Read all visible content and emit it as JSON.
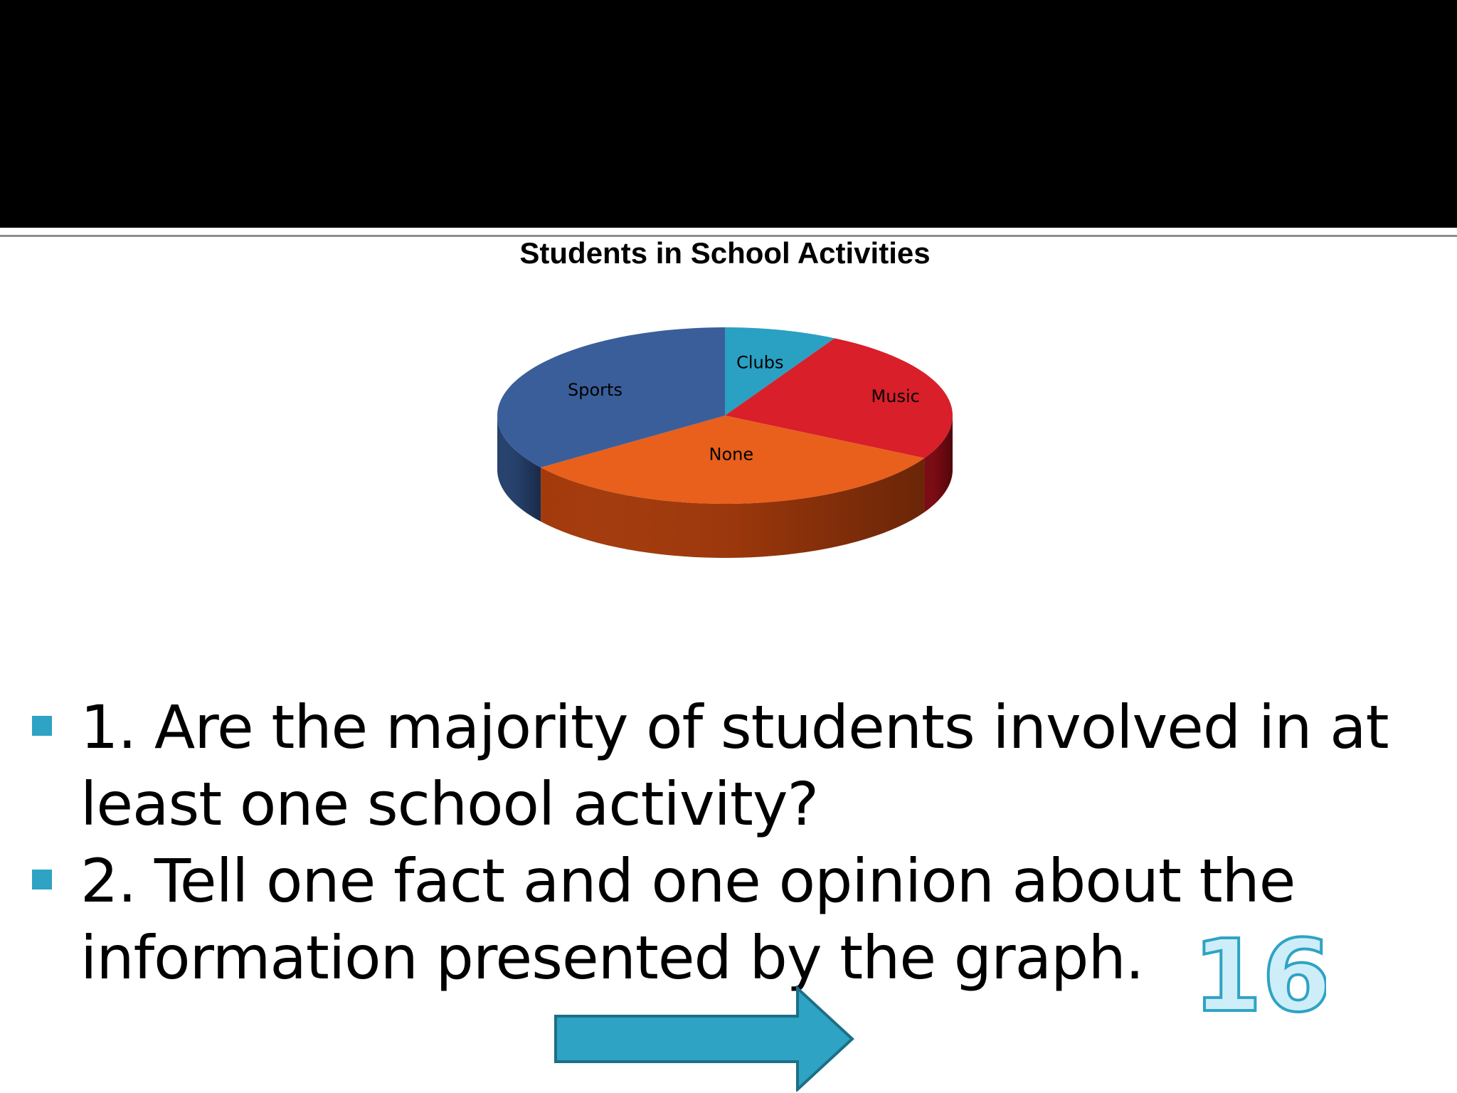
{
  "slide": {
    "page_number": "16",
    "bullets": [
      {
        "text": "1. Are the majority of students involved in at least one school activity?"
      },
      {
        "text": "2. Tell one fact and one opinion about the information presented by the graph."
      }
    ],
    "colors": {
      "header_bar": "#000000",
      "bullet_marker": "#2ea3c4",
      "arrow_fill": "#2ea3c4",
      "page_number_fill": "#cdeef8"
    }
  },
  "chart_data": {
    "type": "pie",
    "title": "Students in School Activities",
    "style": "3d",
    "labels_inside": true,
    "legend": "none",
    "start_direction": "top",
    "direction": "clockwise",
    "categories": [
      "Clubs",
      "Music",
      "None",
      "Sports"
    ],
    "values": [
      8,
      25,
      32,
      35
    ],
    "colors": [
      "#2aa0c2",
      "#d81f2a",
      "#e8601c",
      "#3a5e9a"
    ],
    "side_colors": [
      "#1f7690",
      "#7a0a12",
      "#a33a0c",
      "#26416d"
    ]
  }
}
